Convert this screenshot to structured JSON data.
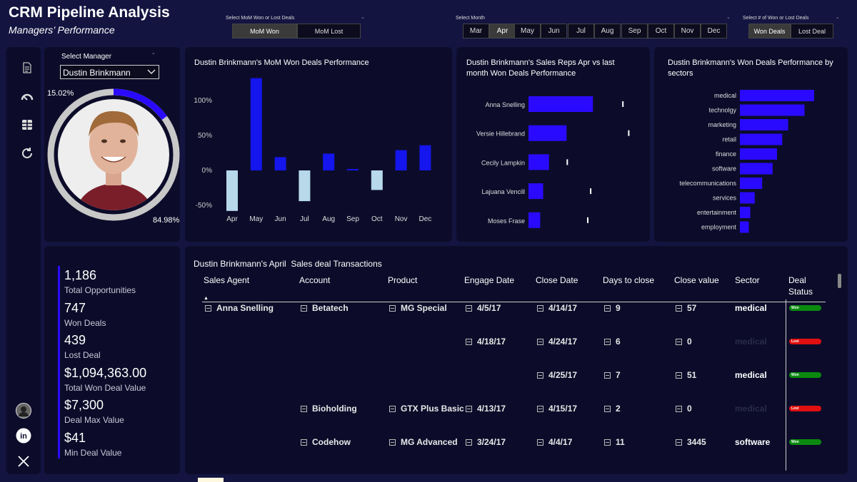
{
  "header": {
    "title": "CRM Pipeline Analysis",
    "subtitle": "Managers’ Performance"
  },
  "slicers": {
    "mom": {
      "label": "Select MoM Won or Lost Deals",
      "options": [
        "MoM Won",
        "MoM Lost"
      ],
      "selected": "MoM Won"
    },
    "month": {
      "label": "Select Month",
      "options": [
        "Mar",
        "Apr",
        "May",
        "Jun",
        "Jul",
        "Aug",
        "Sep",
        "Oct",
        "Nov",
        "Dec"
      ],
      "selected": "Apr"
    },
    "deals": {
      "label": "Select # of Won or Lost Deals",
      "options": [
        "Won Deals",
        "Lost Deal"
      ],
      "selected": "Won Deals"
    },
    "manager": {
      "label": "Select Manager",
      "value": "Dustin Brinkmann"
    }
  },
  "donut": {
    "won_pct": "84.98%",
    "lost_pct": "15.02%",
    "won_value": 84.98,
    "lost_value": 15.02
  },
  "kpis": [
    {
      "value": "1,186",
      "label": "Total Opportunities"
    },
    {
      "value": "747",
      "label": "Won Deals"
    },
    {
      "value": "439",
      "label": "Lost Deal"
    },
    {
      "value": "$1,094,363.00",
      "label": "Total Won Deal Value"
    },
    {
      "value": "$7,300",
      "label": "Deal Max Value"
    },
    {
      "value": "$41",
      "label": "Min Deal Value"
    }
  ],
  "chart_titles": {
    "mom": "Dustin Brinkmann's MoM Won Deals Performance",
    "reps": "Dustin Brinkmann's Sales Reps Apr vs last month Won Deals Performance",
    "sectors": "Dustin Brinkmann's Won Deals Performance by sectors"
  },
  "chart_data": [
    {
      "type": "bar",
      "title": "Dustin Brinkmann's MoM Won Deals Performance",
      "categories": [
        "Apr",
        "May",
        "Jun",
        "Jul",
        "Aug",
        "Sep",
        "Oct",
        "Nov",
        "Dec"
      ],
      "values": [
        -58,
        132,
        19,
        -44,
        24,
        2,
        -28,
        29,
        36
      ],
      "ylim": [
        -60,
        135
      ],
      "yticks": [
        -50,
        0,
        50,
        100
      ],
      "ytick_labels": [
        "-50%",
        "0%",
        "50%",
        "100%"
      ],
      "colors": {
        "positive": "#1515ee",
        "negative": "#b7d9ea"
      }
    },
    {
      "type": "bar",
      "orientation": "horizontal",
      "title": "Dustin Brinkmann's Sales Reps Apr vs last month Won Deals Performance",
      "categories": [
        "Anna Snelling",
        "Versie Hillebrand",
        "Cecily Lampkin",
        "Lajuana Vencill",
        "Moses Frase"
      ],
      "values": [
        22,
        13,
        7,
        5,
        4
      ],
      "targets": [
        32,
        34,
        13,
        21,
        20
      ],
      "xlim": [
        0,
        40
      ],
      "colors": {
        "bar": "#2a0aff",
        "target": "#ffffff"
      }
    },
    {
      "type": "bar",
      "orientation": "horizontal",
      "title": "Dustin Brinkmann's Won Deals Performance by sectors",
      "categories": [
        "medical",
        "technolgy",
        "marketing",
        "retail",
        "finance",
        "software",
        "telecommunications",
        "services",
        "entertainment",
        "employment"
      ],
      "values": [
        100,
        87,
        65,
        57,
        50,
        44,
        30,
        20,
        14,
        12
      ],
      "xlim": [
        0,
        100
      ],
      "colors": {
        "bar": "#2a0aff"
      }
    }
  ],
  "table": {
    "title": "Dustin Brinkmann's April  Sales deal Transactions",
    "headers": [
      "Sales Agent",
      "Account",
      "Product",
      "Engage Date",
      "Close Date",
      "Days to close",
      "Close value",
      "Sector",
      "Deal",
      "Status"
    ],
    "rows": [
      {
        "agent": "Anna Snelling",
        "account": "Betatech",
        "product": "MG Special",
        "engage": "4/5/17",
        "close": "4/14/17",
        "days": "9",
        "value": "57",
        "sector": "medical",
        "status": "Won"
      },
      {
        "agent": "",
        "account": "",
        "product": "",
        "engage": "4/18/17",
        "close": "4/24/17",
        "days": "6",
        "value": "0",
        "sector": "medical",
        "status": "Lost"
      },
      {
        "agent": "",
        "account": "",
        "product": "",
        "engage": "",
        "close": "4/25/17",
        "days": "7",
        "value": "51",
        "sector": "medical",
        "status": "Won"
      },
      {
        "agent": "",
        "account": "Bioholding",
        "product": "GTX Plus Basic",
        "engage": "4/13/17",
        "close": "4/15/17",
        "days": "2",
        "value": "0",
        "sector": "medical",
        "status": "Lost"
      },
      {
        "agent": "",
        "account": "Codehow",
        "product": "MG Advanced",
        "engage": "3/24/17",
        "close": "4/4/17",
        "days": "11",
        "value": "3445",
        "sector": "software",
        "status": "Won"
      }
    ]
  },
  "colors": {
    "background": "#131440",
    "panel": "#0c0c2a",
    "accent": "#2a0aff",
    "won": "#0b8a10",
    "lost": "#e01010"
  },
  "icons": [
    "report-icon",
    "gauge-icon",
    "grid-icon",
    "refresh-icon",
    "avatar-icon",
    "linkedin-icon",
    "x-icon"
  ]
}
